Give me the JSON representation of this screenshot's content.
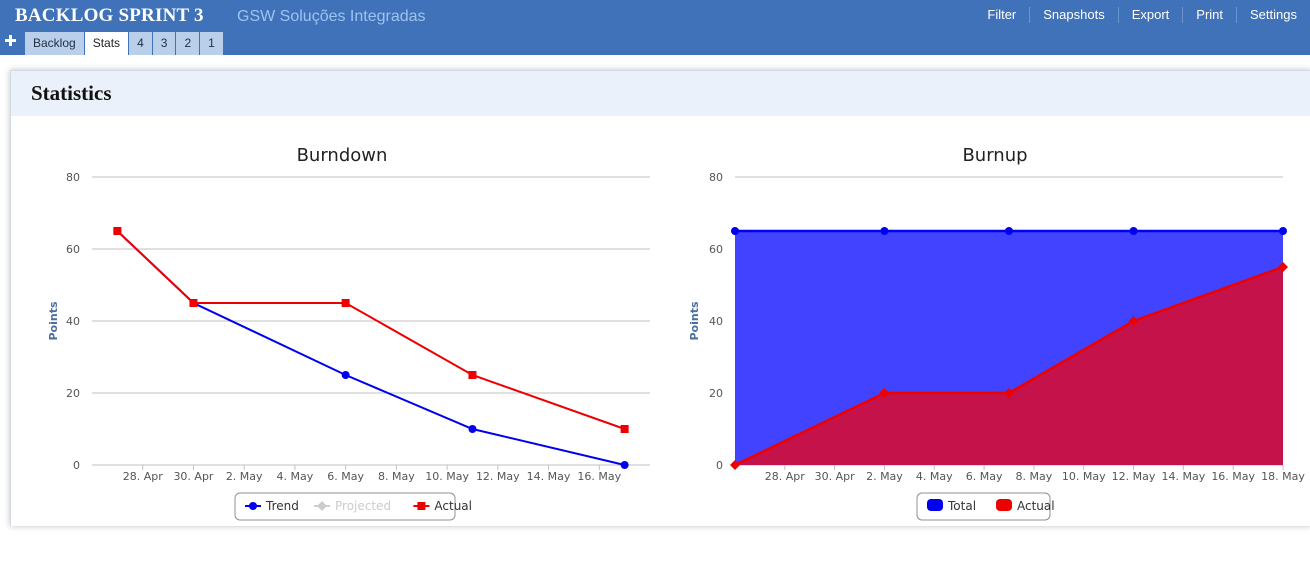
{
  "header": {
    "title": "BACKLOG SPRINT 3",
    "subtitle": "GSW Soluções Integradas",
    "nav": [
      "Filter",
      "Snapshots",
      "Export",
      "Print",
      "Settings"
    ]
  },
  "tabs": {
    "add_icon": "plus-icon",
    "items": [
      {
        "label": "Backlog",
        "active": false
      },
      {
        "label": "Stats",
        "active": true
      },
      {
        "label": "4",
        "active": false
      },
      {
        "label": "3",
        "active": false
      },
      {
        "label": "2",
        "active": false
      },
      {
        "label": "1",
        "active": false
      }
    ]
  },
  "panel": {
    "title": "Statistics"
  },
  "colors": {
    "header_bg": "#3f72b8",
    "tab_bg": "#b9cfea",
    "trend": "#0000ee",
    "actual": "#ee0000",
    "projected": "#cccccc",
    "total_fill": "#3b3dff",
    "actual_fill": "#cc1040"
  },
  "chart_data": [
    {
      "type": "line",
      "title": "Burndown",
      "ylabel": "Points",
      "xlabel": "",
      "ylim": [
        0,
        80
      ],
      "yticks": [
        0,
        20,
        40,
        60,
        80
      ],
      "xlim": [
        "2012-04-26",
        "2012-05-18"
      ],
      "xticks": [
        {
          "date": "2012-04-28",
          "label": "28. Apr"
        },
        {
          "date": "2012-04-30",
          "label": "30. Apr"
        },
        {
          "date": "2012-05-02",
          "label": "2. May"
        },
        {
          "date": "2012-05-04",
          "label": "4. May"
        },
        {
          "date": "2012-05-06",
          "label": "6. May"
        },
        {
          "date": "2012-05-08",
          "label": "8. May"
        },
        {
          "date": "2012-05-10",
          "label": "10. May"
        },
        {
          "date": "2012-05-12",
          "label": "12. May"
        },
        {
          "date": "2012-05-14",
          "label": "14. May"
        },
        {
          "date": "2012-05-16",
          "label": "16. May"
        }
      ],
      "series": [
        {
          "name": "Trend",
          "color": "#0000ee",
          "marker": "circle",
          "hidden": false,
          "points": [
            [
              "2012-04-27",
              65
            ],
            [
              "2012-04-30",
              45
            ],
            [
              "2012-05-06",
              25
            ],
            [
              "2012-05-11",
              10
            ],
            [
              "2012-05-17",
              0
            ]
          ]
        },
        {
          "name": "Projected",
          "color": "#cccccc",
          "marker": "diamond",
          "hidden": true,
          "points": []
        },
        {
          "name": "Actual",
          "color": "#ee0000",
          "marker": "square",
          "hidden": false,
          "points": [
            [
              "2012-04-27",
              65
            ],
            [
              "2012-04-30",
              45
            ],
            [
              "2012-05-06",
              45
            ],
            [
              "2012-05-11",
              25
            ],
            [
              "2012-05-17",
              10
            ]
          ]
        }
      ],
      "grid": true,
      "legend": "bottom-center"
    },
    {
      "type": "area",
      "title": "Burnup",
      "ylabel": "Points",
      "xlabel": "",
      "ylim": [
        0,
        80
      ],
      "yticks": [
        0,
        20,
        40,
        60,
        80
      ],
      "xlim": [
        "2012-04-26",
        "2012-05-18"
      ],
      "xticks": [
        {
          "date": "2012-04-28",
          "label": "28. Apr"
        },
        {
          "date": "2012-04-30",
          "label": "30. Apr"
        },
        {
          "date": "2012-05-02",
          "label": "2. May"
        },
        {
          "date": "2012-05-04",
          "label": "4. May"
        },
        {
          "date": "2012-05-06",
          "label": "6. May"
        },
        {
          "date": "2012-05-08",
          "label": "8. May"
        },
        {
          "date": "2012-05-10",
          "label": "10. May"
        },
        {
          "date": "2012-05-12",
          "label": "12. May"
        },
        {
          "date": "2012-05-14",
          "label": "14. May"
        },
        {
          "date": "2012-05-16",
          "label": "16. May"
        },
        {
          "date": "2012-05-18",
          "label": "18. May"
        }
      ],
      "series": [
        {
          "name": "Total",
          "color": "#0000ee",
          "fill": "#3b3dff",
          "marker": "circle",
          "points": [
            [
              "2012-04-26",
              65
            ],
            [
              "2012-05-02",
              65
            ],
            [
              "2012-05-07",
              65
            ],
            [
              "2012-05-12",
              65
            ],
            [
              "2012-05-18",
              65
            ]
          ]
        },
        {
          "name": "Actual",
          "color": "#ee0000",
          "fill": "#cc1040",
          "marker": "diamond",
          "points": [
            [
              "2012-04-26",
              0
            ],
            [
              "2012-05-02",
              20
            ],
            [
              "2012-05-07",
              20
            ],
            [
              "2012-05-12",
              40
            ],
            [
              "2012-05-18",
              55
            ]
          ]
        }
      ],
      "grid": true,
      "legend": "bottom-center"
    }
  ]
}
